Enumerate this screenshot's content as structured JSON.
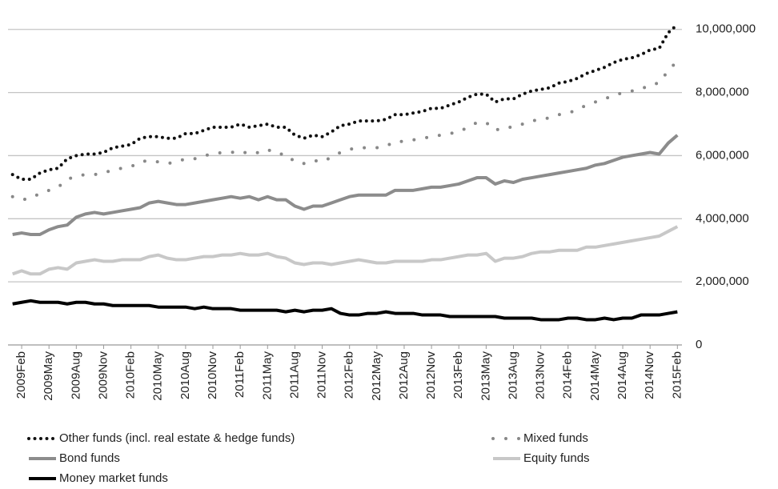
{
  "chart_data": {
    "type": "line",
    "categories": [
      null,
      "2009Feb",
      null,
      null,
      "2009May",
      null,
      null,
      "2009Aug",
      null,
      null,
      "2009Nov",
      null,
      null,
      "2010Feb",
      null,
      null,
      "2010May",
      null,
      null,
      "2010Aug",
      null,
      null,
      "2010Nov",
      null,
      null,
      "2011Feb",
      null,
      null,
      "2011May",
      null,
      null,
      "2011Aug",
      null,
      null,
      "2011Nov",
      null,
      null,
      "2012Feb",
      null,
      null,
      "2012May",
      null,
      null,
      "2012Aug",
      null,
      null,
      "2012Nov",
      null,
      null,
      "2013Feb",
      null,
      null,
      "2013May",
      null,
      null,
      "2013Aug",
      null,
      null,
      "2013Nov",
      null,
      null,
      "2014Feb",
      null,
      null,
      "2014May",
      null,
      null,
      "2014Aug",
      null,
      null,
      "2014Nov",
      null,
      null,
      "2015Feb"
    ],
    "series": [
      {
        "name": "Other funds (incl. real estate & hedge funds)",
        "color": "#111111",
        "line_style": "dotted",
        "values": [
          5400000,
          5250000,
          5250000,
          5450000,
          5550000,
          5600000,
          5900000,
          6000000,
          6050000,
          6050000,
          6100000,
          6250000,
          6300000,
          6350000,
          6550000,
          6600000,
          6600000,
          6550000,
          6550000,
          6700000,
          6700000,
          6800000,
          6900000,
          6900000,
          6900000,
          7000000,
          6900000,
          6950000,
          7000000,
          6900000,
          6900000,
          6650000,
          6550000,
          6650000,
          6600000,
          6750000,
          6950000,
          7000000,
          7100000,
          7100000,
          7100000,
          7150000,
          7300000,
          7300000,
          7350000,
          7400000,
          7500000,
          7500000,
          7600000,
          7700000,
          7850000,
          7950000,
          7950000,
          7700000,
          7800000,
          7800000,
          7950000,
          8050000,
          8100000,
          8150000,
          8300000,
          8350000,
          8450000,
          8600000,
          8700000,
          8800000,
          8950000,
          9050000,
          9100000,
          9200000,
          9350000,
          9400000,
          9900000,
          10150000
        ]
      },
      {
        "name": "Mixed funds",
        "color": "#888888",
        "line_style": "sparse-dotted",
        "values": [
          4700000,
          4600000,
          4650000,
          4800000,
          4900000,
          5000000,
          5250000,
          5350000,
          5400000,
          5400000,
          5450000,
          5550000,
          5600000,
          5650000,
          5800000,
          5850000,
          5800000,
          5750000,
          5800000,
          5900000,
          5900000,
          6000000,
          6050000,
          6100000,
          6100000,
          6150000,
          6050000,
          6100000,
          6200000,
          6050000,
          6050000,
          5800000,
          5750000,
          5850000,
          5800000,
          5950000,
          6100000,
          6200000,
          6250000,
          6250000,
          6250000,
          6300000,
          6450000,
          6450000,
          6500000,
          6550000,
          6600000,
          6650000,
          6700000,
          6750000,
          6900000,
          7050000,
          7050000,
          6800000,
          6900000,
          6900000,
          7000000,
          7100000,
          7150000,
          7200000,
          7300000,
          7350000,
          7450000,
          7600000,
          7700000,
          7800000,
          7900000,
          8000000,
          8050000,
          8100000,
          8250000,
          8300000,
          8700000,
          9000000
        ]
      },
      {
        "name": "Bond funds",
        "color": "#8c8c8c",
        "line_style": "solid",
        "values": [
          3500000,
          3550000,
          3500000,
          3500000,
          3650000,
          3750000,
          3800000,
          4050000,
          4150000,
          4200000,
          4150000,
          4200000,
          4250000,
          4300000,
          4350000,
          4500000,
          4550000,
          4500000,
          4450000,
          4450000,
          4500000,
          4550000,
          4600000,
          4650000,
          4700000,
          4650000,
          4700000,
          4600000,
          4700000,
          4600000,
          4600000,
          4400000,
          4300000,
          4400000,
          4400000,
          4500000,
          4600000,
          4700000,
          4750000,
          4750000,
          4750000,
          4750000,
          4900000,
          4900000,
          4900000,
          4950000,
          5000000,
          5000000,
          5050000,
          5100000,
          5200000,
          5300000,
          5300000,
          5100000,
          5200000,
          5150000,
          5250000,
          5300000,
          5350000,
          5400000,
          5450000,
          5500000,
          5550000,
          5600000,
          5700000,
          5750000,
          5850000,
          5950000,
          6000000,
          6050000,
          6100000,
          6050000,
          6400000,
          6650000
        ]
      },
      {
        "name": "Equity funds",
        "color": "#c8c8c8",
        "line_style": "solid",
        "values": [
          2250000,
          2350000,
          2250000,
          2250000,
          2400000,
          2450000,
          2400000,
          2600000,
          2650000,
          2700000,
          2650000,
          2650000,
          2700000,
          2700000,
          2700000,
          2800000,
          2850000,
          2750000,
          2700000,
          2700000,
          2750000,
          2800000,
          2800000,
          2850000,
          2850000,
          2900000,
          2850000,
          2850000,
          2900000,
          2800000,
          2750000,
          2600000,
          2550000,
          2600000,
          2600000,
          2550000,
          2600000,
          2650000,
          2700000,
          2650000,
          2600000,
          2600000,
          2650000,
          2650000,
          2650000,
          2650000,
          2700000,
          2700000,
          2750000,
          2800000,
          2850000,
          2850000,
          2900000,
          2650000,
          2750000,
          2750000,
          2800000,
          2900000,
          2950000,
          2950000,
          3000000,
          3000000,
          3000000,
          3100000,
          3100000,
          3150000,
          3200000,
          3250000,
          3300000,
          3350000,
          3400000,
          3450000,
          3600000,
          3750000
        ]
      },
      {
        "name": "Money market funds",
        "color": "#000000",
        "line_style": "solid",
        "values": [
          1300000,
          1350000,
          1400000,
          1350000,
          1350000,
          1350000,
          1300000,
          1350000,
          1350000,
          1300000,
          1300000,
          1250000,
          1250000,
          1250000,
          1250000,
          1250000,
          1200000,
          1200000,
          1200000,
          1200000,
          1150000,
          1200000,
          1150000,
          1150000,
          1150000,
          1100000,
          1100000,
          1100000,
          1100000,
          1100000,
          1050000,
          1100000,
          1050000,
          1100000,
          1100000,
          1150000,
          1000000,
          950000,
          950000,
          1000000,
          1000000,
          1050000,
          1000000,
          1000000,
          1000000,
          950000,
          950000,
          950000,
          900000,
          900000,
          900000,
          900000,
          900000,
          900000,
          850000,
          850000,
          850000,
          850000,
          800000,
          800000,
          800000,
          850000,
          850000,
          800000,
          800000,
          850000,
          800000,
          850000,
          850000,
          950000,
          950000,
          950000,
          1000000,
          1050000
        ]
      }
    ],
    "ylim": [
      0,
      10400000
    ],
    "yticks": [
      0,
      {
        "value": 2000000,
        "label": "2,000,000"
      },
      {
        "value": 4000000,
        "label": "4,000,000"
      },
      {
        "value": 6000000,
        "label": "6,000,000"
      },
      {
        "value": 8000000,
        "label": "8,000,000"
      },
      {
        "value": 10000000,
        "label": "10,000,000"
      }
    ],
    "grid": true
  }
}
